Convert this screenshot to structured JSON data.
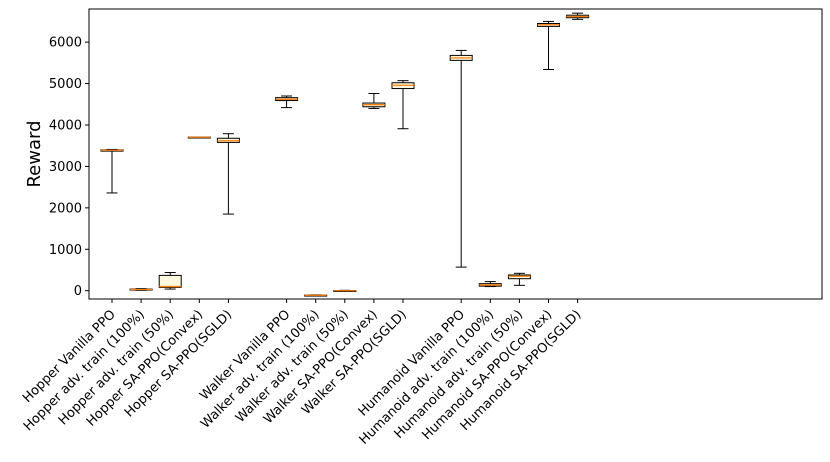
{
  "chart_data": {
    "type": "box",
    "title": "",
    "xlabel": "",
    "ylabel": "Reward",
    "ylim": [
      -200,
      6800
    ],
    "yticks": [
      0,
      1000,
      2000,
      3000,
      4000,
      5000,
      6000
    ],
    "grid": false,
    "colors": {
      "box_fill": "#fff9e0",
      "median": "#ff7f0e",
      "stroke": "#000000"
    },
    "boxes": [
      {
        "label": "Hopper Vanilla PPO",
        "slot": 1,
        "whislo": 2360,
        "q1": 3370,
        "med": 3390,
        "q3": 3400,
        "whishi": 3410
      },
      {
        "label": "Hopper adv. train (100%)",
        "slot": 2,
        "whislo": 10,
        "q1": 20,
        "med": 30,
        "q3": 40,
        "whishi": 50
      },
      {
        "label": "Hopper adv. train (50%)",
        "slot": 3,
        "whislo": 40,
        "q1": 80,
        "med": 100,
        "q3": 370,
        "whishi": 440
      },
      {
        "label": "Hopper SA-PPO(Convex)",
        "slot": 4,
        "whislo": 3700,
        "q1": 3700,
        "med": 3705,
        "q3": 3710,
        "whishi": 3710
      },
      {
        "label": "Hopper SA-PPO(SGLD)",
        "slot": 5,
        "whislo": 1850,
        "q1": 3580,
        "med": 3620,
        "q3": 3680,
        "whishi": 3790
      },
      {
        "label": "Walker Vanilla PPO",
        "slot": 7,
        "whislo": 4420,
        "q1": 4590,
        "med": 4620,
        "q3": 4660,
        "whishi": 4700
      },
      {
        "label": "Walker adv. train (100%)",
        "slot": 8,
        "whislo": -120,
        "q1": -115,
        "med": -110,
        "q3": -105,
        "whishi": -100
      },
      {
        "label": "Walker adv. train (50%)",
        "slot": 9,
        "whislo": -10,
        "q1": -5,
        "med": 0,
        "q3": 5,
        "whishi": 10
      },
      {
        "label": "Walker SA-PPO(Convex)",
        "slot": 10,
        "whislo": 4400,
        "q1": 4440,
        "med": 4490,
        "q3": 4530,
        "whishi": 4760
      },
      {
        "label": "Walker SA-PPO(SGLD)",
        "slot": 11,
        "whislo": 3910,
        "q1": 4880,
        "med": 4960,
        "q3": 5020,
        "whishi": 5070
      },
      {
        "label": "Humanoid Vanilla PPO",
        "slot": 13,
        "whislo": 570,
        "q1": 5560,
        "med": 5620,
        "q3": 5680,
        "whishi": 5800
      },
      {
        "label": "Humanoid adv. train (100%)",
        "slot": 14,
        "whislo": 100,
        "q1": 110,
        "med": 140,
        "q3": 170,
        "whishi": 220
      },
      {
        "label": "Humanoid adv. train (50%)",
        "slot": 15,
        "whislo": 130,
        "q1": 290,
        "med": 350,
        "q3": 380,
        "whishi": 420
      },
      {
        "label": "Humanoid SA-PPO(Convex)",
        "slot": 16,
        "whislo": 5340,
        "q1": 6380,
        "med": 6420,
        "q3": 6450,
        "whishi": 6500
      },
      {
        "label": "Humanoid SA-PPO(SGLD)",
        "slot": 17,
        "whislo": 6550,
        "q1": 6590,
        "med": 6620,
        "q3": 6650,
        "whishi": 6700
      }
    ]
  }
}
